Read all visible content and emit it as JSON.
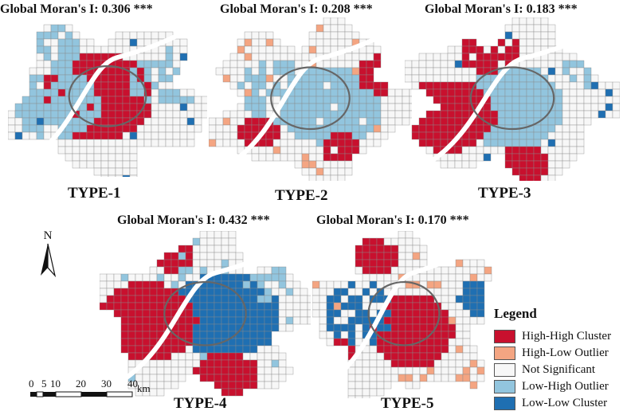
{
  "panels": [
    {
      "id": "type1",
      "stat": "Global Moran's I: 0.306 ***",
      "label": "TYPE-1"
    },
    {
      "id": "type2",
      "stat": "Global Moran's I: 0.208 ***",
      "label": "TYPE-2"
    },
    {
      "id": "type3",
      "stat": "Global Moran's I: 0.183 ***",
      "label": "TYPE-3"
    },
    {
      "id": "type4",
      "stat": "Global Moran's I: 0.432 ***",
      "label": "TYPE-4"
    },
    {
      "id": "type5",
      "stat": "Global Moran's I: 0.170 ***",
      "label": "TYPE-5"
    }
  ],
  "legend": {
    "title": "Legend",
    "items": [
      {
        "label": "High-High Cluster",
        "color": "#c8102e"
      },
      {
        "label": "High-Low Outlier",
        "color": "#f4a582"
      },
      {
        "label": "Not Significant",
        "color": "#f7f7f7"
      },
      {
        "label": "Low-High Outlier",
        "color": "#92c5de"
      },
      {
        "label": "Low-Low Cluster",
        "color": "#1f6fb2"
      }
    ]
  },
  "north_arrow": {
    "letter": "N"
  },
  "scale_bar": {
    "ticks": [
      "0",
      "5",
      "10",
      "20",
      "30",
      "40"
    ],
    "unit": "km"
  }
}
